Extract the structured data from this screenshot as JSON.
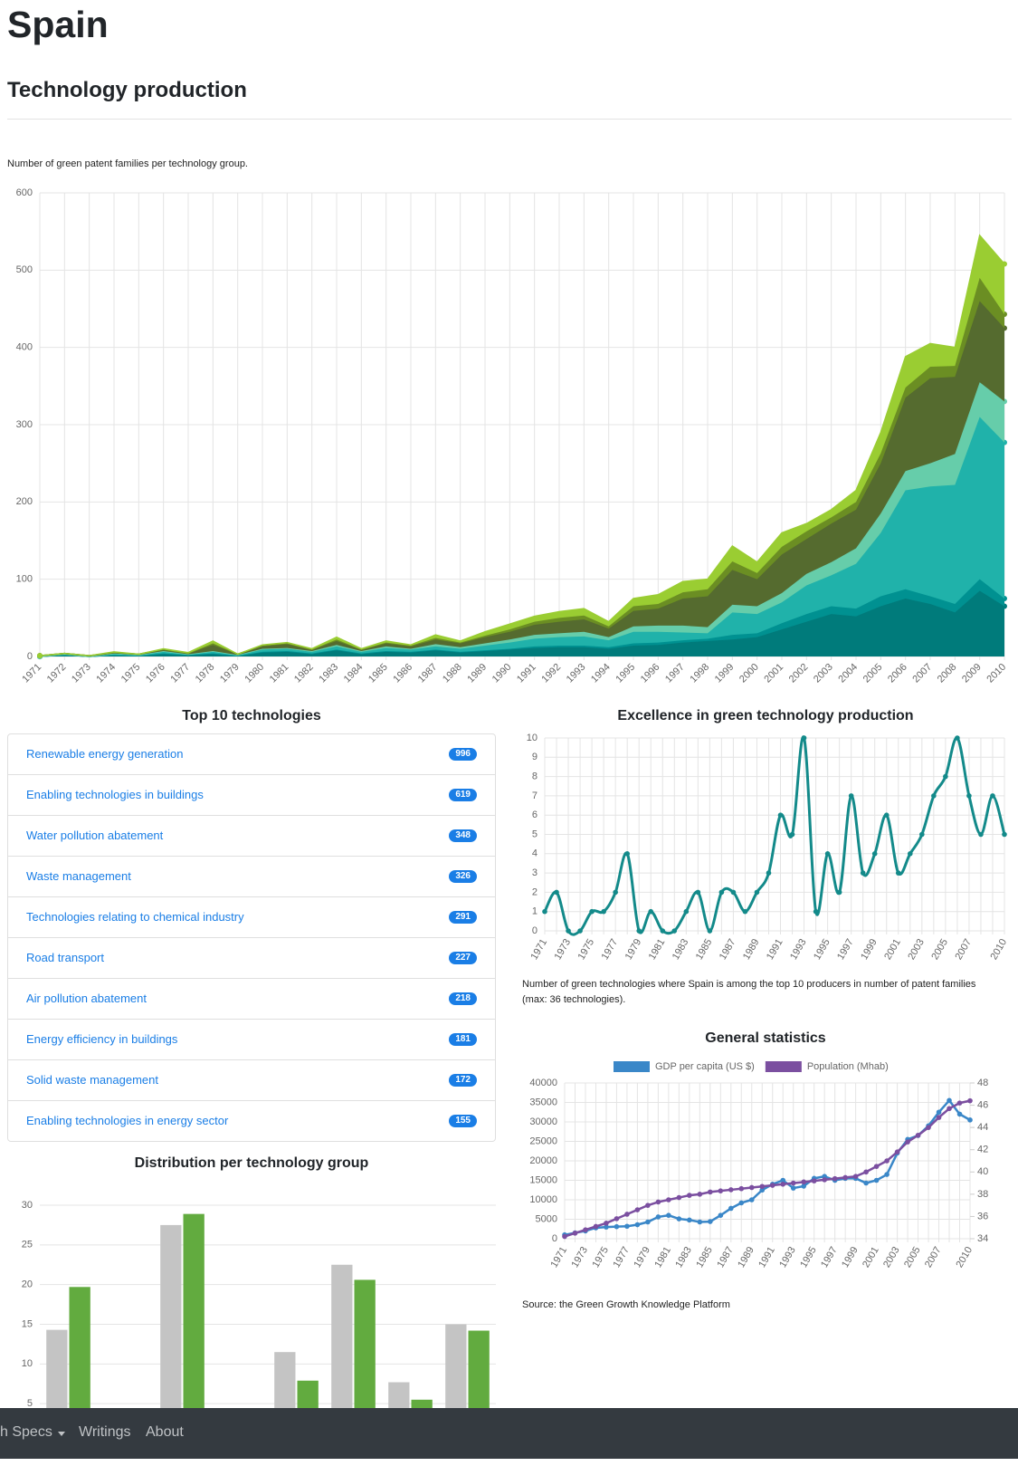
{
  "header": {
    "title": "Spain",
    "subtitle": "Technology production"
  },
  "top_technologies": {
    "title": "Top 10 technologies",
    "items": [
      {
        "name": "Renewable energy generation",
        "count": 996
      },
      {
        "name": "Enabling technologies in buildings",
        "count": 619
      },
      {
        "name": "Water pollution abatement",
        "count": 348
      },
      {
        "name": "Waste management",
        "count": 326
      },
      {
        "name": "Technologies relating to chemical industry",
        "count": 291
      },
      {
        "name": "Road transport",
        "count": 227
      },
      {
        "name": "Air pollution abatement",
        "count": 218
      },
      {
        "name": "Energy efficiency in buildings",
        "count": 181
      },
      {
        "name": "Solid waste management",
        "count": 172
      },
      {
        "name": "Enabling technologies in energy sector",
        "count": 155
      }
    ]
  },
  "nav": {
    "items": [
      "h Specs",
      "Writings",
      "About"
    ]
  },
  "chart_data": [
    {
      "type": "area",
      "stacked": true,
      "caption": "Number of green patent families per technology group.",
      "categories": [
        "1971",
        "1972",
        "1973",
        "1974",
        "1975",
        "1976",
        "1977",
        "1978",
        "1979",
        "1980",
        "1981",
        "1982",
        "1983",
        "1984",
        "1985",
        "1986",
        "1987",
        "1988",
        "1989",
        "1990",
        "1991",
        "1992",
        "1993",
        "1994",
        "1995",
        "1996",
        "1997",
        "1998",
        "1999",
        "2000",
        "2001",
        "2002",
        "2003",
        "2004",
        "2005",
        "2006",
        "2007",
        "2008",
        "2009",
        "2010"
      ],
      "series": [
        {
          "color": "#007b7b",
          "values": [
            0,
            2,
            0,
            2,
            1,
            3,
            2,
            3,
            1,
            5,
            6,
            3,
            8,
            3,
            6,
            5,
            8,
            5,
            7,
            9,
            11,
            12,
            12,
            10,
            14,
            15,
            18,
            20,
            22,
            25,
            35,
            45,
            55,
            52,
            65,
            75,
            68,
            57,
            85,
            65
          ]
        },
        {
          "color": "#009191",
          "values": [
            0,
            0,
            0,
            0,
            0,
            1,
            0,
            1,
            0,
            1,
            1,
            1,
            1,
            1,
            1,
            1,
            1,
            1,
            1,
            1,
            2,
            2,
            2,
            2,
            3,
            3,
            3,
            3,
            6,
            5,
            8,
            10,
            10,
            10,
            13,
            12,
            10,
            11,
            15,
            10
          ]
        },
        {
          "color": "#20b2aa",
          "values": [
            0,
            1,
            0,
            1,
            1,
            2,
            1,
            2,
            1,
            3,
            3,
            2,
            4,
            2,
            4,
            3,
            4,
            4,
            6,
            8,
            10,
            11,
            12,
            9,
            15,
            14,
            10,
            7,
            29,
            25,
            27,
            37,
            40,
            58,
            82,
            128,
            142,
            154,
            210,
            202
          ]
        },
        {
          "color": "#66cdaa",
          "values": [
            0,
            0,
            0,
            1,
            0,
            1,
            0,
            1,
            0,
            1,
            1,
            1,
            2,
            1,
            2,
            1,
            3,
            2,
            3,
            4,
            5,
            5,
            6,
            4,
            7,
            8,
            9,
            8,
            10,
            10,
            12,
            15,
            17,
            20,
            25,
            25,
            30,
            40,
            45,
            53
          ]
        },
        {
          "color": "#556b2f",
          "values": [
            1,
            1,
            1,
            1,
            1,
            2,
            1,
            8,
            1,
            4,
            5,
            2,
            5,
            2,
            4,
            3,
            6,
            5,
            8,
            10,
            13,
            15,
            16,
            11,
            20,
            22,
            35,
            40,
            45,
            35,
            50,
            45,
            50,
            50,
            65,
            95,
            110,
            100,
            105,
            95
          ]
        },
        {
          "color": "#6b8e23",
          "values": [
            0,
            0,
            0,
            0,
            0,
            0,
            0,
            2,
            0,
            0,
            1,
            0,
            2,
            0,
            1,
            1,
            2,
            1,
            2,
            3,
            4,
            5,
            5,
            3,
            6,
            6,
            8,
            9,
            11,
            8,
            10,
            10,
            8,
            10,
            13,
            13,
            15,
            14,
            30,
            18
          ]
        },
        {
          "color": "#9acd32",
          "values": [
            0,
            0,
            0,
            1,
            0,
            1,
            1,
            3,
            0,
            1,
            1,
            1,
            3,
            1,
            2,
            1,
            4,
            2,
            5,
            7,
            7,
            8,
            9,
            6,
            10,
            12,
            14,
            13,
            20,
            14,
            18,
            10,
            10,
            15,
            27,
            40,
            30,
            24,
            55,
            65
          ]
        }
      ],
      "ylim": [
        0,
        600
      ],
      "yticks": [
        0,
        100,
        200,
        300,
        400,
        500,
        600
      ],
      "grid": true
    },
    {
      "type": "line",
      "smooth": true,
      "title": "Excellence in green technology production",
      "caption": "Number of green technologies where Spain is among the top 10 producers in number of patent families (max: 36 technologies).",
      "categories": [
        "1971",
        null,
        "1973",
        null,
        "1975",
        null,
        "1977",
        null,
        "1979",
        null,
        "1981",
        null,
        "1983",
        null,
        "1985",
        null,
        "1987",
        null,
        "1989",
        null,
        "1991",
        null,
        "1993",
        null,
        "1995",
        null,
        "1997",
        null,
        "1999",
        null,
        "2001",
        null,
        "2003",
        null,
        "2005",
        null,
        "2007",
        null,
        null,
        "2010"
      ],
      "series": [
        {
          "color": "#138a8a",
          "values": [
            1,
            2,
            0,
            0,
            1,
            1,
            2,
            4,
            0,
            1,
            0,
            0,
            1,
            2,
            0,
            2,
            2,
            1,
            2,
            3,
            6,
            5,
            10,
            1,
            4,
            2,
            7,
            3,
            4,
            6,
            3,
            4,
            5,
            7,
            8,
            10,
            7,
            5,
            7,
            5
          ]
        }
      ],
      "ylim": [
        0,
        10
      ],
      "yticks": [
        0,
        1,
        2,
        3,
        4,
        5,
        6,
        7,
        8,
        9,
        10
      ],
      "grid": true
    },
    {
      "type": "line",
      "smooth": false,
      "title": "General statistics",
      "source": "Source: the Green Growth Knowledge Platform",
      "legend": "top",
      "categories": [
        "1971",
        null,
        "1973",
        null,
        "1975",
        null,
        "1977",
        null,
        "1979",
        null,
        "1981",
        null,
        "1983",
        null,
        "1985",
        null,
        "1987",
        null,
        "1989",
        null,
        "1991",
        null,
        "1993",
        null,
        "1995",
        null,
        "1997",
        null,
        "1999",
        null,
        "2001",
        null,
        "2003",
        null,
        "2005",
        null,
        "2007",
        null,
        null,
        "2010"
      ],
      "series": [
        {
          "name": "GDP per capita (US $)",
          "color": "#3a87c8",
          "values": [
            1000,
            1500,
            2000,
            2800,
            3000,
            3100,
            3200,
            3600,
            4300,
            5600,
            6000,
            5100,
            4800,
            4300,
            4400,
            6000,
            7800,
            9200,
            10000,
            12500,
            14000,
            15000,
            13000,
            13500,
            15500,
            16000,
            15000,
            15500,
            15500,
            14300,
            15000,
            16500,
            22000,
            25500,
            26500,
            29000,
            32500,
            35500,
            32000,
            30500
          ]
        },
        {
          "name": "Population (Mhab)",
          "color": "#7b4fa0",
          "axis": "y2",
          "values": [
            34.2,
            34.5,
            34.8,
            35.1,
            35.4,
            35.8,
            36.2,
            36.6,
            37.0,
            37.3,
            37.5,
            37.7,
            37.9,
            38.0,
            38.2,
            38.3,
            38.4,
            38.5,
            38.6,
            38.7,
            38.8,
            38.9,
            39.0,
            39.1,
            39.2,
            39.3,
            39.4,
            39.5,
            39.6,
            40.0,
            40.5,
            41.0,
            41.8,
            42.7,
            43.3,
            44.0,
            44.9,
            45.7,
            46.2,
            46.4
          ]
        }
      ],
      "ylim": [
        0,
        40000
      ],
      "yticks": [
        0,
        5000,
        10000,
        15000,
        20000,
        25000,
        30000,
        35000,
        40000
      ],
      "y2lim": [
        34,
        48
      ],
      "y2ticks": [
        34,
        36,
        38,
        40,
        42,
        44,
        46,
        48
      ],
      "grid": true
    },
    {
      "type": "bar",
      "title": "Distribution per technology group",
      "categories": [
        null,
        null,
        null,
        null,
        null,
        null,
        null,
        null
      ],
      "series": [
        {
          "color": "#c4c4c4",
          "values": [
            14.3,
            0,
            27.5,
            0,
            11.5,
            22.5,
            7.7,
            15
          ]
        },
        {
          "color": "#62ab3f",
          "values": [
            19.7,
            0,
            28.9,
            0,
            7.9,
            20.6,
            5.5,
            14.2
          ]
        }
      ],
      "ylim": [
        0,
        30
      ],
      "yticks": [
        5,
        10,
        15,
        20,
        25,
        30
      ],
      "grid": true
    }
  ]
}
